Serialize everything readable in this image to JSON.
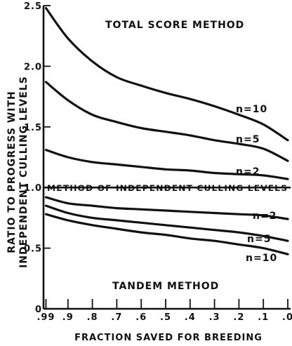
{
  "chart_data": {
    "type": "line",
    "ylabel_line1": "RATIO TO PROGRESS WITH",
    "ylabel_line2": "INDEPENDENT CULLING LEVELS",
    "xlabel": "FRACTION SAVED FOR BREEDING",
    "ylim": [
      0,
      2.5
    ],
    "xlim": [
      1.0,
      0.0
    ],
    "x_ticks": [
      {
        "value": 0.99,
        "label": ".99"
      },
      {
        "value": 0.9,
        "label": ".9"
      },
      {
        "value": 0.8,
        "label": ".8"
      },
      {
        "value": 0.7,
        "label": ".7"
      },
      {
        "value": 0.6,
        "label": ".6"
      },
      {
        "value": 0.5,
        "label": ".5"
      },
      {
        "value": 0.4,
        "label": ".4"
      },
      {
        "value": 0.3,
        "label": ".3"
      },
      {
        "value": 0.2,
        "label": ".2"
      },
      {
        "value": 0.1,
        "label": ".1"
      },
      {
        "value": 0.0,
        "label": ".0"
      }
    ],
    "y_ticks": [
      {
        "value": 0,
        "label": "0"
      },
      {
        "value": 0.5,
        "label": "0.5"
      },
      {
        "value": 1.0,
        "label": "1.0"
      },
      {
        "value": 1.5,
        "label": "1.5"
      },
      {
        "value": 2.0,
        "label": "2.0"
      },
      {
        "value": 2.5,
        "label": "2.5"
      }
    ],
    "annotations": {
      "top": "TOTAL SCORE METHOD",
      "middle": "METHOD OF INDEPENDENT CULLING LEVELS",
      "bottom": "TANDEM METHOD"
    },
    "reference_line": {
      "y": 1.0
    },
    "series": [
      {
        "name": "n=10",
        "label": "n=10",
        "group": "total_score",
        "x": [
          0.99,
          0.9,
          0.8,
          0.7,
          0.6,
          0.5,
          0.4,
          0.3,
          0.2,
          0.1,
          0.0
        ],
        "y": [
          2.48,
          2.23,
          2.04,
          1.91,
          1.84,
          1.78,
          1.73,
          1.67,
          1.6,
          1.52,
          1.39
        ]
      },
      {
        "name": "n=5",
        "label": "n=5",
        "group": "total_score",
        "x": [
          0.99,
          0.9,
          0.8,
          0.7,
          0.6,
          0.5,
          0.4,
          0.3,
          0.2,
          0.1,
          0.0
        ],
        "y": [
          1.87,
          1.72,
          1.6,
          1.54,
          1.49,
          1.46,
          1.43,
          1.39,
          1.36,
          1.32,
          1.22
        ]
      },
      {
        "name": "n=2",
        "label": "n=2",
        "group": "total_score",
        "x": [
          0.99,
          0.9,
          0.8,
          0.7,
          0.6,
          0.5,
          0.4,
          0.3,
          0.2,
          0.1,
          0.0
        ],
        "y": [
          1.31,
          1.25,
          1.21,
          1.19,
          1.17,
          1.15,
          1.14,
          1.12,
          1.11,
          1.1,
          1.07
        ]
      },
      {
        "name": "n=2",
        "label": "n=2",
        "group": "tandem",
        "x": [
          0.99,
          0.9,
          0.8,
          0.7,
          0.6,
          0.5,
          0.4,
          0.3,
          0.2,
          0.1,
          0.0
        ],
        "y": [
          0.92,
          0.87,
          0.85,
          0.83,
          0.82,
          0.81,
          0.8,
          0.79,
          0.78,
          0.77,
          0.74
        ]
      },
      {
        "name": "n=5",
        "label": "n=5",
        "group": "tandem",
        "x": [
          0.99,
          0.9,
          0.8,
          0.7,
          0.6,
          0.5,
          0.4,
          0.3,
          0.2,
          0.1,
          0.0
        ],
        "y": [
          0.85,
          0.79,
          0.75,
          0.73,
          0.71,
          0.69,
          0.67,
          0.65,
          0.63,
          0.6,
          0.56
        ]
      },
      {
        "name": "n=10",
        "label": "n=10",
        "group": "tandem",
        "x": [
          0.99,
          0.9,
          0.8,
          0.7,
          0.6,
          0.5,
          0.4,
          0.3,
          0.2,
          0.1,
          0.0
        ],
        "y": [
          0.78,
          0.73,
          0.69,
          0.66,
          0.63,
          0.61,
          0.58,
          0.56,
          0.53,
          0.5,
          0.45
        ]
      }
    ]
  }
}
